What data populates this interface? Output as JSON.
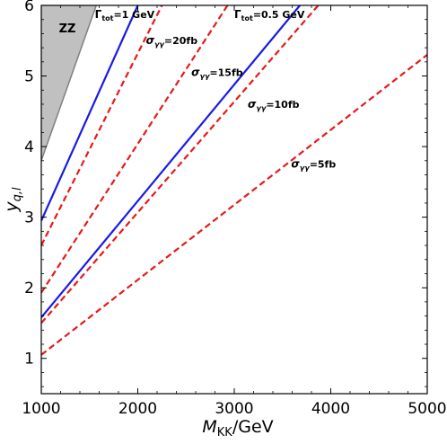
{
  "chart_data": {
    "type": "line",
    "xlabel": {
      "main": "M",
      "sub": "KK",
      "suffix": "/GeV"
    },
    "ylabel": {
      "main": "y",
      "sub": "q,l"
    },
    "xlim": [
      1000,
      5000
    ],
    "ylim": [
      0.5,
      6
    ],
    "xticks": [
      1000,
      2000,
      3000,
      4000,
      5000
    ],
    "yticks": [
      1,
      2,
      3,
      4,
      5,
      6
    ],
    "grid": false,
    "series": [
      {
        "style": "solid",
        "color": "#1a1ae6",
        "x": [
          1000,
          2000
        ],
        "y": [
          2.95,
          6.0
        ]
      },
      {
        "style": "solid",
        "color": "#1a1ae6",
        "x": [
          1000,
          3680
        ],
        "y": [
          1.58,
          6.0
        ]
      },
      {
        "style": "dashed",
        "color": "#e61a1a",
        "x": [
          1000,
          2250
        ],
        "y": [
          2.6,
          6.0
        ]
      },
      {
        "style": "dashed",
        "color": "#e61a1a",
        "x": [
          1000,
          2930
        ],
        "y": [
          1.93,
          6.0
        ]
      },
      {
        "style": "dashed",
        "color": "#e61a1a",
        "x": [
          1000,
          3870
        ],
        "y": [
          1.5,
          6.0
        ]
      },
      {
        "style": "dashed",
        "color": "#e61a1a",
        "x": [
          1000,
          5000
        ],
        "y": [
          1.05,
          5.3
        ]
      }
    ],
    "region": {
      "fill": "#c0c0c0",
      "edge": "#808080",
      "boundary": [
        [
          1000,
          3.8
        ],
        [
          1570,
          6.0
        ]
      ],
      "label": "ZZ",
      "label_at": [
        1270,
        5.62
      ]
    },
    "annotations": [
      {
        "main": "Γ",
        "sub": "tot",
        "suffix": "=1 GeV",
        "x": 1555,
        "y": 5.82
      },
      {
        "main": "Γ",
        "sub": "tot",
        "suffix": "=0.5 GeV",
        "x": 3000,
        "y": 5.82
      },
      {
        "main": "σ",
        "sub": "γγ",
        "suffix": "=20fb",
        "x": 2085,
        "y": 5.45
      },
      {
        "main": "σ",
        "sub": "γγ",
        "suffix": "=15fb",
        "x": 2555,
        "y": 5.0
      },
      {
        "main": "σ",
        "sub": "γγ",
        "suffix": "=10fb",
        "x": 3140,
        "y": 4.55
      },
      {
        "main": "σ",
        "sub": "γγ",
        "suffix": "=5fb",
        "x": 3590,
        "y": 3.7
      }
    ],
    "colors": {
      "frame": "#000000",
      "background": "#ffffff"
    }
  }
}
